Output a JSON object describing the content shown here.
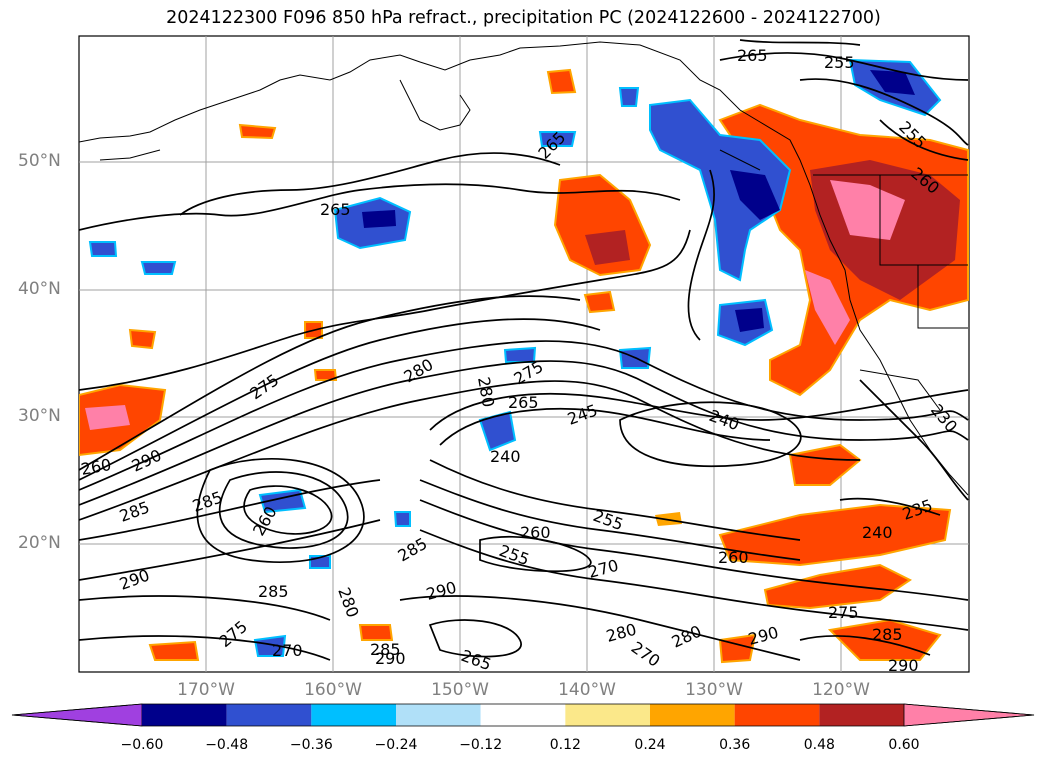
{
  "title": "2024122300 F096 850 hPa refract., precipitation PC (2024122600 - 2024122700)",
  "map": {
    "lat_labels": [
      "50°N",
      "40°N",
      "30°N",
      "20°N"
    ],
    "lon_labels": [
      "170°W",
      "160°W",
      "150°W",
      "140°W",
      "130°W",
      "120°W"
    ],
    "contour_labels": [
      "265",
      "255",
      "255",
      "265",
      "265",
      "260",
      "275",
      "280",
      "280",
      "265",
      "275",
      "245",
      "240",
      "240",
      "260",
      "290",
      "285",
      "285",
      "260",
      "255",
      "255",
      "260",
      "260",
      "240",
      "235",
      "290",
      "285",
      "280",
      "285",
      "270",
      "290",
      "285",
      "275",
      "270",
      "265",
      "280",
      "270",
      "280",
      "290",
      "290",
      "285",
      "290",
      "275",
      "230"
    ]
  },
  "colorbar": {
    "ticks": [
      "−0.60",
      "−0.48",
      "−0.36",
      "−0.24",
      "−0.12",
      "0.12",
      "0.24",
      "0.36",
      "0.48",
      "0.60"
    ],
    "colors": [
      "#a040e0",
      "#00008b",
      "#3050d0",
      "#00bfff",
      "#b0e0f8",
      "#ffffff",
      "#fbe88a",
      "#ffa500",
      "#ff4500",
      "#b22222",
      "#ff80a8"
    ],
    "extend": "both"
  },
  "colors": {
    "neg_strong": "#3050d0",
    "neg_dark": "#00008b",
    "neg_light": "#00bfff",
    "pos_orange": "#ff4500",
    "pos_dark": "#b22222",
    "pos_pink": "#ff80a8",
    "pos_light": "#ffa500"
  }
}
